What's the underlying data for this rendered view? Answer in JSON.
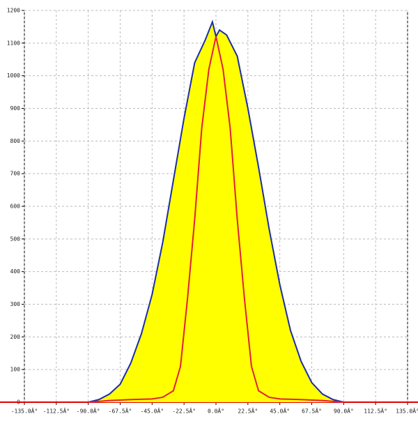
{
  "chart_data": {
    "type": "area",
    "xlim": [
      -135,
      135
    ],
    "ylim": [
      0,
      1200
    ],
    "xticks": [
      {
        "value": -135,
        "label": "-135.0Â°"
      },
      {
        "value": -112.5,
        "label": "-112.5Â°"
      },
      {
        "value": -90,
        "label": "-90.0Â°"
      },
      {
        "value": -67.5,
        "label": "-67.5Â°"
      },
      {
        "value": -45,
        "label": "-45.0Â°"
      },
      {
        "value": -22.5,
        "label": "-22.5Â°"
      },
      {
        "value": 0,
        "label": "0.0Â°"
      },
      {
        "value": 22.5,
        "label": "22.5Â°"
      },
      {
        "value": 45,
        "label": "45.0Â°"
      },
      {
        "value": 67.5,
        "label": "67.5Â°"
      },
      {
        "value": 90,
        "label": "90.0Â°"
      },
      {
        "value": 112.5,
        "label": "112.5Â°"
      },
      {
        "value": 135,
        "label": "135.0Â°"
      }
    ],
    "yticks": [
      0,
      100,
      200,
      300,
      400,
      500,
      600,
      700,
      800,
      900,
      1000,
      1100,
      1200
    ],
    "grid": true,
    "series": [
      {
        "color": "#1a2ca8",
        "fill": "#ffff00",
        "x": [
          -90,
          -82.5,
          -75,
          -67.5,
          -60,
          -52.5,
          -45,
          -37.5,
          -30,
          -22.5,
          -15,
          -7.5,
          -2.5,
          0,
          2.5,
          7.5,
          15,
          22.5,
          30,
          37.5,
          45,
          52.5,
          60,
          67.5,
          75,
          82.5,
          90
        ],
        "values": [
          0,
          8,
          25,
          55,
          120,
          210,
          330,
          490,
          680,
          870,
          1040,
          1110,
          1165,
          1120,
          1140,
          1125,
          1060,
          900,
          720,
          530,
          360,
          220,
          125,
          60,
          25,
          8,
          0
        ]
      },
      {
        "color": "#e0203a",
        "x": [
          -90,
          -75,
          -60,
          -45,
          -37.5,
          -30,
          -25,
          -20,
          -15,
          -10,
          -5,
          0,
          5,
          10,
          15,
          20,
          25,
          30,
          37.5,
          45,
          60,
          75,
          90
        ],
        "values": [
          0,
          5,
          8,
          10,
          15,
          35,
          110,
          320,
          560,
          840,
          1020,
          1120,
          1020,
          840,
          560,
          320,
          110,
          35,
          15,
          10,
          8,
          5,
          0
        ]
      }
    ]
  }
}
